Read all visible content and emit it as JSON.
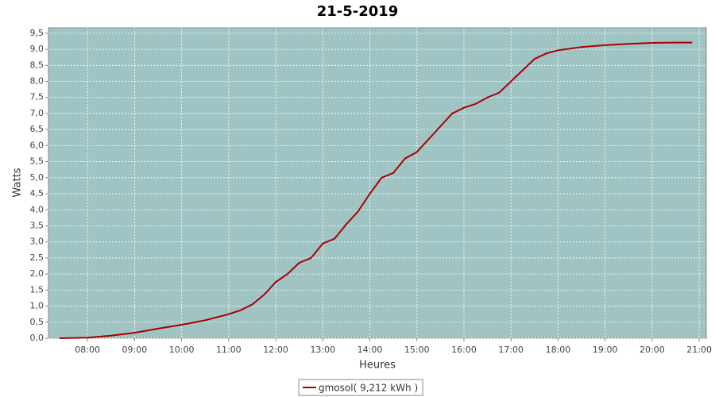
{
  "chart_data": {
    "type": "line",
    "title": "21-5-2019",
    "x_label": "Heures",
    "y_label": "Watts",
    "x": [
      7.4,
      8.0,
      8.5,
      9.0,
      9.5,
      10.0,
      10.5,
      11.0,
      11.25,
      11.5,
      11.75,
      12.0,
      12.25,
      12.5,
      12.75,
      13.0,
      13.25,
      13.5,
      13.75,
      14.0,
      14.25,
      14.5,
      14.75,
      15.0,
      15.25,
      15.5,
      15.75,
      16.0,
      16.25,
      16.5,
      16.75,
      17.0,
      17.25,
      17.5,
      17.75,
      18.0,
      18.5,
      19.0,
      19.5,
      20.0,
      20.5,
      20.85
    ],
    "series": [
      {
        "name": "gmosol( 9,212 kWh )",
        "color": "#aa0000",
        "values": [
          0.0,
          0.02,
          0.08,
          0.17,
          0.3,
          0.42,
          0.56,
          0.75,
          0.87,
          1.05,
          1.35,
          1.75,
          2.0,
          2.35,
          2.5,
          2.95,
          3.1,
          3.55,
          3.95,
          4.5,
          5.0,
          5.15,
          5.6,
          5.8,
          6.2,
          6.6,
          7.0,
          7.18,
          7.3,
          7.5,
          7.65,
          8.0,
          8.35,
          8.7,
          8.87,
          8.97,
          9.07,
          9.13,
          9.17,
          9.2,
          9.21,
          9.21
        ]
      }
    ],
    "xlim": [
      7.17,
      21.15
    ],
    "ylim": [
      0,
      9.67
    ],
    "xticks": [
      {
        "value": 8,
        "label": "08:00"
      },
      {
        "value": 9,
        "label": "09:00"
      },
      {
        "value": 10,
        "label": "10:00"
      },
      {
        "value": 11,
        "label": "11:00"
      },
      {
        "value": 12,
        "label": "12:00"
      },
      {
        "value": 13,
        "label": "13:00"
      },
      {
        "value": 14,
        "label": "14:00"
      },
      {
        "value": 15,
        "label": "15:00"
      },
      {
        "value": 16,
        "label": "16:00"
      },
      {
        "value": 17,
        "label": "17:00"
      },
      {
        "value": 18,
        "label": "18:00"
      },
      {
        "value": 19,
        "label": "19:00"
      },
      {
        "value": 20,
        "label": "20:00"
      },
      {
        "value": 21,
        "label": "21:00"
      }
    ],
    "yticks": [
      {
        "value": 0,
        "label": "0,0"
      },
      {
        "value": 0.5,
        "label": "0,5"
      },
      {
        "value": 1,
        "label": "1,0"
      },
      {
        "value": 1.5,
        "label": "1,5"
      },
      {
        "value": 2,
        "label": "2,0"
      },
      {
        "value": 2.5,
        "label": "2,5"
      },
      {
        "value": 3,
        "label": "3,0"
      },
      {
        "value": 3.5,
        "label": "3,5"
      },
      {
        "value": 4,
        "label": "4,0"
      },
      {
        "value": 4.5,
        "label": "4,5"
      },
      {
        "value": 5,
        "label": "5,0"
      },
      {
        "value": 5.5,
        "label": "5,5"
      },
      {
        "value": 6,
        "label": "6,0"
      },
      {
        "value": 6.5,
        "label": "6,5"
      },
      {
        "value": 7,
        "label": "7,0"
      },
      {
        "value": 7.5,
        "label": "7,5"
      },
      {
        "value": 8,
        "label": "8,0"
      },
      {
        "value": 8.5,
        "label": "8,5"
      },
      {
        "value": 9,
        "label": "9,0"
      },
      {
        "value": 9.5,
        "label": "9,5"
      }
    ],
    "grid": true,
    "plot_background": "#a0c4c4"
  }
}
